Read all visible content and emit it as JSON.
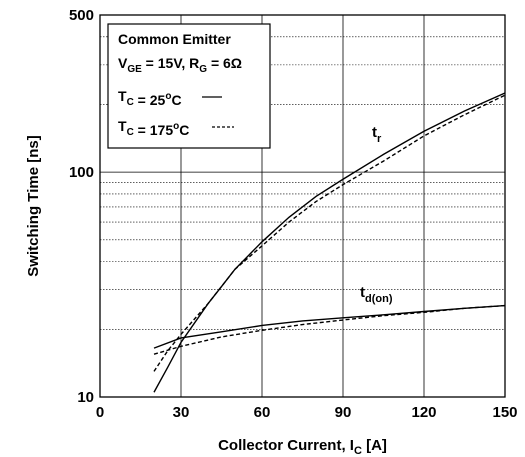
{
  "chart_data": {
    "type": "line",
    "xlabel": "Collector Current, I",
    "xlabel_sub": "C",
    "xlabel_unit": " [A]",
    "ylabel": "Switching Time [ns]",
    "xlim": [
      0,
      150
    ],
    "ylim": [
      10,
      500
    ],
    "yscale": "log",
    "grid": true,
    "xticks": [
      "0",
      "30",
      "60",
      "90",
      "120",
      "150"
    ],
    "yticks": [
      "10",
      "100",
      "500"
    ],
    "legend_box": {
      "line1": "Common Emitter",
      "line2_a": "V",
      "line2_a_sub": "GE",
      "line2_b": " = 15V, R",
      "line2_b_sub": "G",
      "line2_c": " = 6Ω",
      "line3_a": "T",
      "line3_a_sub": "C",
      "line3_b": " = 25",
      "line3_b_sup": "o",
      "line3_c": "C",
      "line4_a": "T",
      "line4_a_sub": "C",
      "line4_b": " = 175",
      "line4_b_sup": "o",
      "line4_c": "C"
    },
    "series": [
      {
        "label_main": "t",
        "label_sub": "r",
        "condition": "25°C",
        "style": "solid",
        "x": [
          20,
          25,
          30,
          40,
          45,
          50,
          60,
          70,
          80,
          90,
          105,
          120,
          135,
          150
        ],
        "y": [
          10.5,
          13.5,
          17.5,
          26,
          31,
          37,
          49,
          63,
          78,
          93,
          120,
          152,
          187,
          225
        ]
      },
      {
        "label_main": "t",
        "label_sub": "r",
        "condition": "175°C",
        "style": "dashed",
        "x": [
          20,
          25,
          30,
          40,
          45,
          50,
          60,
          70,
          80,
          90,
          105,
          120,
          135,
          150
        ],
        "y": [
          13,
          16,
          19,
          26,
          31,
          37,
          47,
          60,
          74,
          88,
          112,
          145,
          180,
          220
        ]
      },
      {
        "label_main": "t",
        "label_sub": "d(on)",
        "condition": "25°C",
        "style": "solid",
        "x": [
          20,
          30,
          45,
          60,
          75,
          90,
          105,
          120,
          135,
          150
        ],
        "y": [
          16.5,
          18.3,
          19.5,
          20.8,
          21.8,
          22.5,
          23.2,
          24,
          24.8,
          25.5
        ]
      },
      {
        "label_main": "t",
        "label_sub": "d(on)",
        "condition": "175°C",
        "style": "dashed",
        "x": [
          20,
          30,
          45,
          60,
          75,
          90,
          105,
          120,
          135,
          150
        ],
        "y": [
          15.5,
          16.8,
          18.5,
          19.8,
          21,
          22,
          23,
          23.8,
          24.8,
          25.5
        ]
      }
    ]
  }
}
